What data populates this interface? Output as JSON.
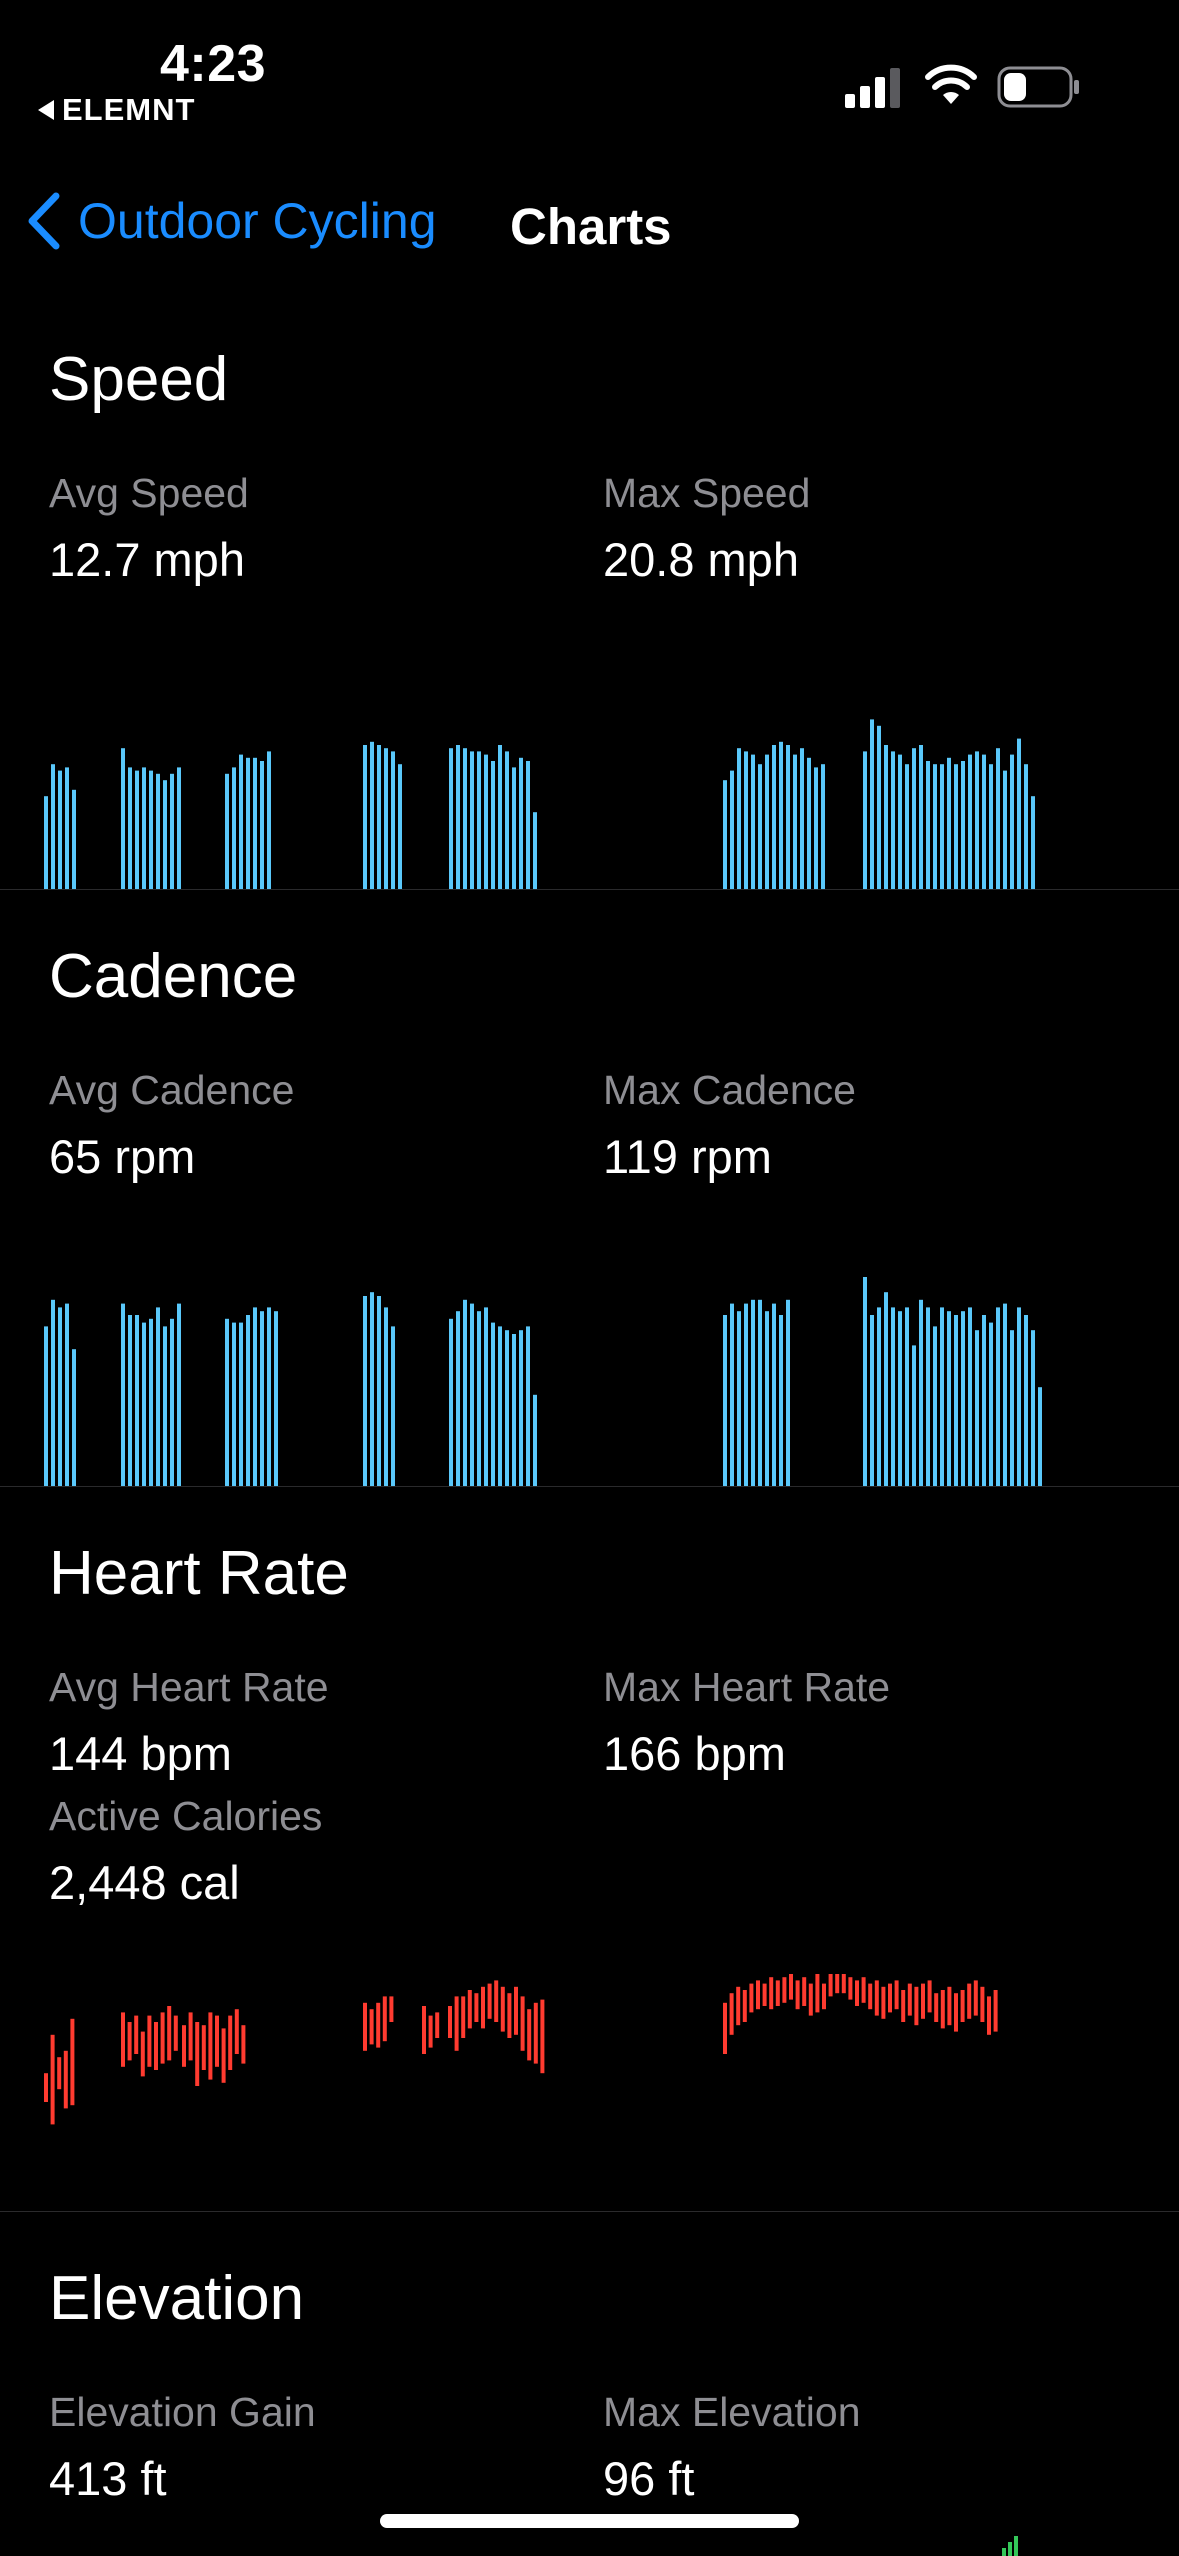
{
  "status_bar": {
    "time": "4:23",
    "back_app": "ELEMNT"
  },
  "nav": {
    "back_label": "Outdoor Cycling",
    "title": "Charts"
  },
  "colors": {
    "accent": "#1a8cff",
    "bar_blue": "#5ac8fa",
    "hr_red": "#ff3b30",
    "elev_green": "#34c759"
  },
  "speed": {
    "title": "Speed",
    "avg_label": "Avg Speed",
    "avg_value": "12.7 mph",
    "max_label": "Max Speed",
    "max_value": "20.8 mph"
  },
  "cadence": {
    "title": "Cadence",
    "avg_label": "Avg Cadence",
    "avg_value": "65 rpm",
    "max_label": "Max Cadence",
    "max_value": "119 rpm"
  },
  "heart_rate": {
    "title": "Heart Rate",
    "avg_label": "Avg Heart Rate",
    "avg_value": "144 bpm",
    "max_label": "Max Heart Rate",
    "max_value": "166 bpm",
    "cal_label": "Active Calories",
    "cal_value": "2,448 cal"
  },
  "elevation": {
    "title": "Elevation",
    "gain_label": "Elevation Gain",
    "gain_value": "413 ft",
    "max_label": "Max Elevation",
    "max_value": "96 ft"
  },
  "chart_data": [
    {
      "type": "bar",
      "series": [
        {
          "segments": [
            [
              0.58,
              0.78,
              0.74,
              0.76,
              0.62
            ],
            [
              0.88,
              0.76,
              0.74,
              0.76,
              0.74,
              0.72,
              0.68,
              0.72,
              0.76
            ],
            [
              0.72,
              0.76,
              0.84,
              0.82,
              0.82,
              0.8,
              0.86
            ],
            [
              0.9,
              0.92,
              0.9,
              0.88,
              0.86,
              0.78
            ],
            [
              0.88,
              0.9,
              0.88,
              0.86,
              0.86,
              0.84,
              0.8,
              0.9,
              0.86,
              0.76,
              0.82,
              0.8,
              0.48
            ],
            [
              0.68,
              0.74,
              0.88,
              0.86,
              0.84,
              0.78,
              0.84,
              0.9,
              0.92,
              0.9,
              0.84,
              0.88,
              0.82,
              0.76,
              0.78
            ],
            [
              0.86,
              1.06,
              1.02,
              0.9,
              0.86,
              0.84,
              0.78,
              0.88,
              0.9,
              0.8,
              0.78,
              0.78,
              0.82,
              0.78,
              0.8,
              0.84,
              0.86,
              0.84,
              0.78,
              0.88,
              0.74,
              0.84,
              0.94,
              0.78,
              0.58
            ]
          ]
        }
      ],
      "ylim": [
        0,
        1.1
      ]
    },
    {
      "type": "bar",
      "series": [
        {
          "segments": [
            [
              0.84,
              0.98,
              0.94,
              0.96,
              0.72
            ],
            [
              0.96,
              0.9,
              0.9,
              0.86,
              0.88,
              0.94,
              0.84,
              0.88,
              0.96
            ],
            [
              0.88,
              0.86,
              0.86,
              0.9,
              0.94,
              0.92,
              0.94,
              0.92
            ],
            [
              1.0,
              1.02,
              1.0,
              0.94,
              0.84
            ],
            [
              0.88,
              0.92,
              0.98,
              0.96,
              0.92,
              0.94,
              0.86,
              0.84,
              0.82,
              0.8,
              0.82,
              0.84,
              0.48
            ],
            [
              0.9,
              0.96,
              0.92,
              0.96,
              0.98,
              0.98,
              0.92,
              0.96,
              0.9,
              0.98
            ],
            [
              1.1,
              0.9,
              0.94,
              1.02,
              0.94,
              0.92,
              0.94,
              0.74,
              0.98,
              0.94,
              0.84,
              0.94,
              0.92,
              0.9,
              0.92,
              0.94,
              0.82,
              0.9,
              0.86,
              0.94,
              0.96,
              0.82,
              0.94,
              0.9,
              0.82,
              0.52
            ]
          ]
        }
      ],
      "ylim": [
        0,
        1.1
      ]
    },
    {
      "type": "bar",
      "series": [
        {
          "segments": [
            [
              [
                0.3,
                0.48
              ],
              [
                0.16,
                0.72
              ],
              [
                0.38,
                0.58
              ],
              [
                0.26,
                0.62
              ],
              [
                0.28,
                0.82
              ]
            ],
            [
              [
                0.52,
                0.86
              ],
              [
                0.56,
                0.8
              ],
              [
                0.6,
                0.84
              ],
              [
                0.46,
                0.74
              ],
              [
                0.52,
                0.84
              ],
              [
                0.5,
                0.8
              ],
              [
                0.54,
                0.86
              ],
              [
                0.56,
                0.9
              ],
              [
                0.62,
                0.84
              ]
            ],
            [
              [
                0.52,
                0.78
              ],
              [
                0.56,
                0.86
              ],
              [
                0.4,
                0.8
              ],
              [
                0.5,
                0.78
              ],
              [
                0.44,
                0.86
              ],
              [
                0.52,
                0.84
              ],
              [
                0.42,
                0.76
              ],
              [
                0.5,
                0.84
              ],
              [
                0.6,
                0.88
              ],
              [
                0.54,
                0.78
              ]
            ],
            [
              [
                0.62,
                0.92
              ],
              [
                0.66,
                0.88
              ],
              [
                0.64,
                0.92
              ],
              [
                0.68,
                0.96
              ],
              [
                0.8,
                0.96
              ]
            ],
            [
              [
                0.6,
                0.9
              ],
              [
                0.64,
                0.84
              ],
              [
                0.7,
                0.86
              ]
            ],
            [
              [
                0.7,
                0.9
              ],
              [
                0.62,
                0.96
              ],
              [
                0.7,
                0.96
              ],
              [
                0.76,
                1.0
              ],
              [
                0.8,
                0.98
              ],
              [
                0.76,
                1.02
              ],
              [
                0.82,
                1.04
              ],
              [
                0.8,
                1.06
              ],
              [
                0.74,
                1.02
              ],
              [
                0.7,
                0.98
              ],
              [
                0.72,
                1.02
              ],
              [
                0.62,
                0.96
              ],
              [
                0.56,
                0.88
              ],
              [
                0.54,
                0.92
              ],
              [
                0.48,
                0.94
              ]
            ],
            [
              [
                0.6,
                0.92
              ],
              [
                0.72,
                0.98
              ],
              [
                0.78,
                1.02
              ],
              [
                0.8,
                1.0
              ],
              [
                0.86,
                1.04
              ],
              [
                0.88,
                1.06
              ],
              [
                0.9,
                1.04
              ],
              [
                0.88,
                1.08
              ],
              [
                0.9,
                1.06
              ],
              [
                0.92,
                1.08
              ],
              [
                0.94,
                1.1
              ],
              [
                0.88,
                1.06
              ],
              [
                0.9,
                1.08
              ],
              [
                0.84,
                1.04
              ],
              [
                0.86,
                1.1
              ],
              [
                0.88,
                1.04
              ],
              [
                0.96,
                1.1
              ],
              [
                0.98,
                1.1
              ],
              [
                0.98,
                1.1
              ],
              [
                0.94,
                1.08
              ],
              [
                0.9,
                1.06
              ],
              [
                0.92,
                1.08
              ],
              [
                0.88,
                1.04
              ],
              [
                0.84,
                1.06
              ],
              [
                0.82,
                1.02
              ],
              [
                0.86,
                1.04
              ],
              [
                0.88,
                1.06
              ],
              [
                0.8,
                1.0
              ],
              [
                0.84,
                1.04
              ],
              [
                0.78,
                1.02
              ],
              [
                0.82,
                1.04
              ],
              [
                0.86,
                1.06
              ],
              [
                0.8,
                0.98
              ],
              [
                0.76,
                1.0
              ],
              [
                0.78,
                1.02
              ],
              [
                0.74,
                0.98
              ],
              [
                0.8,
                1.0
              ],
              [
                0.82,
                1.04
              ],
              [
                0.84,
                1.06
              ],
              [
                0.8,
                1.02
              ],
              [
                0.72,
                0.96
              ],
              [
                0.74,
                1.0
              ]
            ]
          ]
        }
      ],
      "ylim": [
        0,
        1.1
      ]
    }
  ]
}
